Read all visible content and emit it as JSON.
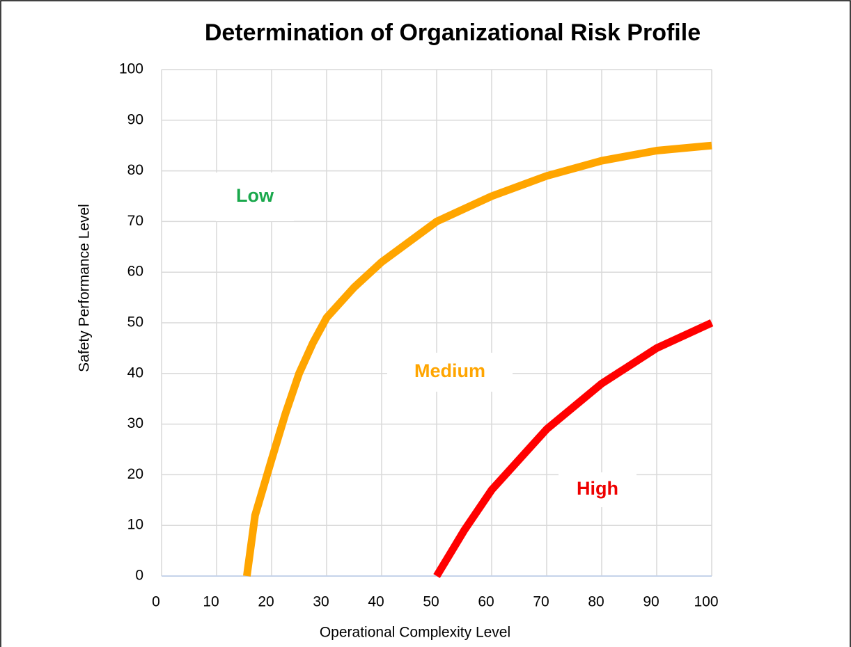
{
  "chart_data": {
    "type": "line",
    "title": "Determination of Organizational Risk Profile",
    "x_label": "Operational Complexity Level",
    "y_label": "Safety Performance Level",
    "xlim": [
      0,
      100
    ],
    "ylim": [
      0,
      100
    ],
    "xticks": [
      0,
      10,
      20,
      30,
      40,
      50,
      60,
      70,
      80,
      90,
      100
    ],
    "yticks": [
      0,
      10,
      20,
      30,
      40,
      50,
      60,
      70,
      80,
      90,
      100
    ],
    "grid": true,
    "series": [
      {
        "color": "#ffa500",
        "x": [
          15.5,
          17,
          20,
          22.5,
          25,
          27.5,
          30,
          35,
          40,
          45,
          50,
          60,
          70,
          80,
          90,
          100
        ],
        "values": [
          0,
          12,
          23,
          32,
          40,
          46,
          51,
          57,
          62,
          66,
          70,
          75,
          79,
          82,
          84,
          85
        ]
      },
      {
        "color": "#ff0000",
        "x": [
          50,
          55,
          60,
          65,
          70,
          80,
          90,
          100
        ],
        "values": [
          0,
          9,
          17,
          23,
          29,
          38,
          45,
          50
        ]
      }
    ],
    "annotations": [
      {
        "text": "Low",
        "color": "#1aa84c"
      },
      {
        "text": "Medium",
        "color": "#ffa500"
      },
      {
        "text": "High",
        "color": "#ee0000"
      }
    ]
  }
}
